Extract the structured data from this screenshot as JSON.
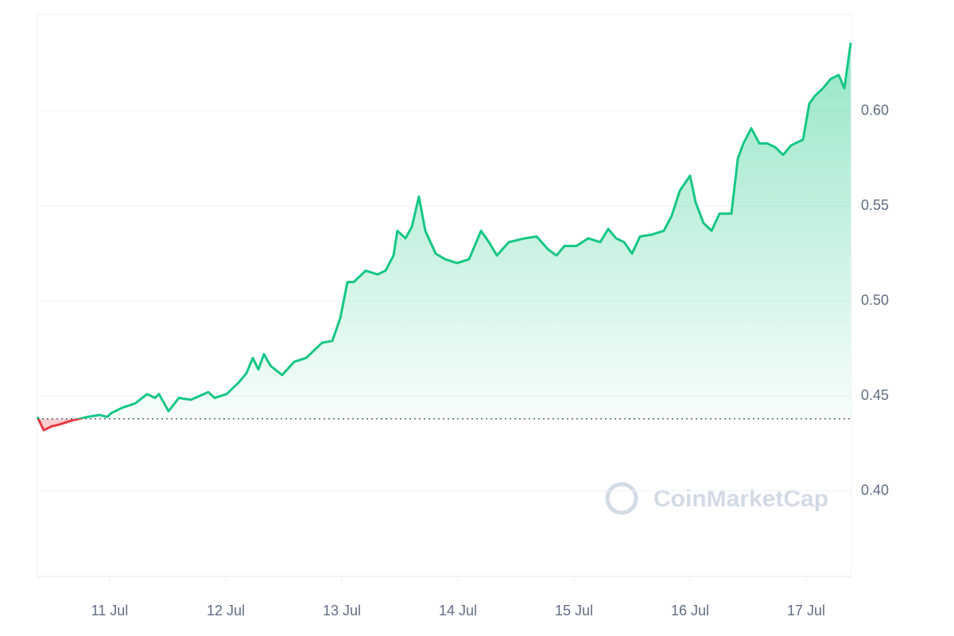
{
  "chart_data": {
    "type": "line",
    "watermark": "CoinMarketCap",
    "x": [
      10.377,
      10.432,
      10.5,
      10.568,
      10.671,
      10.808,
      10.911,
      10.979,
      11.014,
      11.116,
      11.219,
      11.322,
      11.39,
      11.425,
      11.507,
      11.596,
      11.699,
      11.849,
      11.904,
      12.007,
      12.11,
      12.178,
      12.233,
      12.281,
      12.329,
      12.384,
      12.486,
      12.589,
      12.692,
      12.76,
      12.829,
      12.918,
      12.986,
      13.048,
      13.103,
      13.205,
      13.308,
      13.377,
      13.445,
      13.479,
      13.548,
      13.603,
      13.664,
      13.719,
      13.808,
      13.89,
      13.993,
      14.096,
      14.199,
      14.267,
      14.336,
      14.438,
      14.575,
      14.678,
      14.781,
      14.849,
      14.918,
      15.021,
      15.123,
      15.226,
      15.295,
      15.363,
      15.432,
      15.5,
      15.568,
      15.671,
      15.774,
      15.842,
      15.911,
      16.0,
      16.048,
      16.116,
      16.185,
      16.253,
      16.356,
      16.411,
      16.459,
      16.527,
      16.596,
      16.664,
      16.733,
      16.801,
      16.87,
      16.973,
      17.027,
      17.075,
      17.144,
      17.212,
      17.281,
      17.329,
      17.384
    ],
    "series": [
      {
        "color": "#16c784",
        "color_below": "#ea3943",
        "values": [
          0.439,
          0.432,
          0.434,
          0.435,
          0.437,
          0.439,
          0.44,
          0.439,
          0.441,
          0.444,
          0.446,
          0.451,
          0.449,
          0.451,
          0.442,
          0.449,
          0.448,
          0.452,
          0.449,
          0.451,
          0.457,
          0.462,
          0.47,
          0.464,
          0.472,
          0.466,
          0.461,
          0.468,
          0.47,
          0.474,
          0.478,
          0.479,
          0.491,
          0.51,
          0.51,
          0.516,
          0.514,
          0.516,
          0.524,
          0.537,
          0.533,
          0.539,
          0.555,
          0.537,
          0.525,
          0.522,
          0.52,
          0.522,
          0.537,
          0.531,
          0.524,
          0.531,
          0.533,
          0.534,
          0.527,
          0.524,
          0.529,
          0.529,
          0.533,
          0.531,
          0.538,
          0.533,
          0.531,
          0.525,
          0.534,
          0.535,
          0.537,
          0.545,
          0.558,
          0.566,
          0.552,
          0.541,
          0.537,
          0.546,
          0.546,
          0.575,
          0.583,
          0.591,
          0.583,
          0.583,
          0.581,
          0.577,
          0.582,
          0.585,
          0.604,
          0.608,
          0.612,
          0.617,
          0.619,
          0.612,
          0.636
        ]
      }
    ],
    "reference": 0.438,
    "xlim": [
      10.377,
      17.39
    ],
    "xticks": [
      {
        "value": 11,
        "label": "11 Jul"
      },
      {
        "value": 12,
        "label": "12 Jul"
      },
      {
        "value": 13,
        "label": "13 Jul"
      },
      {
        "value": 14,
        "label": "14 Jul"
      },
      {
        "value": 15,
        "label": "15 Jul"
      },
      {
        "value": 16,
        "label": "16 Jul"
      },
      {
        "value": 17,
        "label": "17 Jul"
      }
    ],
    "ylim": [
      0.355,
      0.651
    ],
    "yticks": [
      {
        "value": 0.4,
        "label": "0.40"
      },
      {
        "value": 0.45,
        "label": "0.45"
      },
      {
        "value": 0.5,
        "label": "0.50"
      },
      {
        "value": 0.55,
        "label": "0.55"
      },
      {
        "value": 0.6,
        "label": "0.60"
      }
    ],
    "grid": true
  }
}
